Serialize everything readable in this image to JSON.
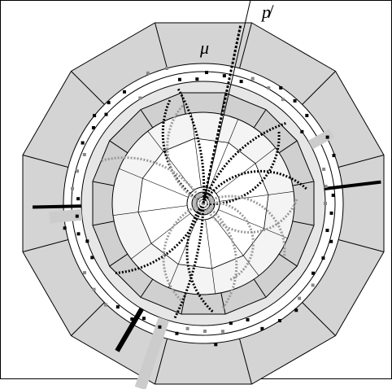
{
  "labels": {
    "missing_momentum": "p̸",
    "muon": "μ"
  }
}
